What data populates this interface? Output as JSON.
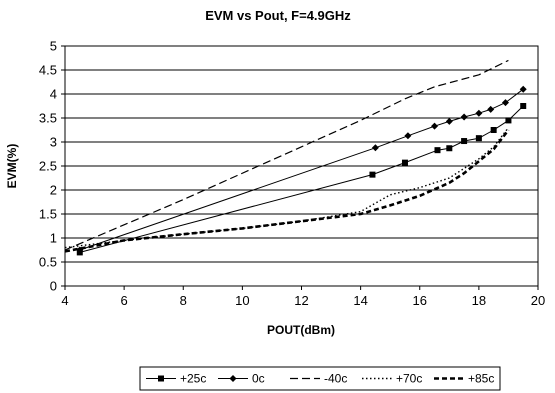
{
  "chart_data": {
    "type": "line",
    "title": "EVM vs Pout, F=4.9GHz",
    "xlabel": "POUT(dBm)",
    "ylabel": "EVM(%)",
    "xlim": [
      4,
      20
    ],
    "ylim": [
      0,
      5
    ],
    "xticks": [
      4,
      6,
      8,
      10,
      12,
      14,
      16,
      18,
      20
    ],
    "yticks": [
      0,
      0.5,
      1,
      1.5,
      2,
      2.5,
      3,
      3.5,
      4,
      4.5,
      5
    ],
    "ytick_labels": [
      "0",
      "0.5",
      "1",
      "1.5",
      "2",
      "2.5",
      "3",
      "3.5",
      "4",
      "4.5",
      "5"
    ],
    "grid": "horizontal",
    "legend_position": "bottom",
    "series": [
      {
        "name": "+25c",
        "style": "solid-square",
        "color": "#000000",
        "x": [
          4.5,
          14.4,
          15.5,
          16.6,
          17.0,
          17.5,
          18.0,
          18.5,
          19.0,
          19.5
        ],
        "y": [
          0.7,
          2.32,
          2.57,
          2.83,
          2.87,
          3.02,
          3.08,
          3.25,
          3.45,
          3.75
        ]
      },
      {
        "name": "0c",
        "style": "solid-diamond",
        "color": "#000000",
        "x": [
          4.5,
          14.5,
          15.6,
          16.5,
          17.0,
          17.5,
          18.0,
          18.4,
          18.9,
          19.5
        ],
        "y": [
          0.75,
          2.88,
          3.13,
          3.33,
          3.43,
          3.52,
          3.6,
          3.68,
          3.82,
          4.1
        ]
      },
      {
        "name": "-40c",
        "style": "long-dash",
        "color": "#000000",
        "x": [
          4.0,
          8.0,
          12.0,
          14.0,
          15.5,
          16.5,
          18.0,
          19.0
        ],
        "y": [
          0.75,
          1.8,
          2.9,
          3.45,
          3.9,
          4.15,
          4.4,
          4.7
        ]
      },
      {
        "name": "+70c",
        "style": "dotted",
        "color": "#000000",
        "x": [
          4.0,
          6.0,
          8.0,
          10.0,
          12.0,
          14.0,
          15.0,
          16.0,
          17.0,
          17.5,
          18.0,
          18.5,
          19.0
        ],
        "y": [
          0.8,
          0.95,
          1.08,
          1.2,
          1.35,
          1.55,
          1.9,
          2.05,
          2.25,
          2.45,
          2.65,
          2.9,
          3.3
        ]
      },
      {
        "name": "+85c",
        "style": "heavy-dash",
        "color": "#000000",
        "x": [
          4.0,
          6.0,
          8.0,
          10.0,
          12.0,
          14.0,
          15.0,
          16.0,
          17.0,
          17.5,
          18.0,
          18.5,
          19.0
        ],
        "y": [
          0.72,
          0.95,
          1.08,
          1.2,
          1.35,
          1.5,
          1.68,
          1.88,
          2.15,
          2.35,
          2.6,
          2.85,
          3.25
        ]
      }
    ]
  }
}
